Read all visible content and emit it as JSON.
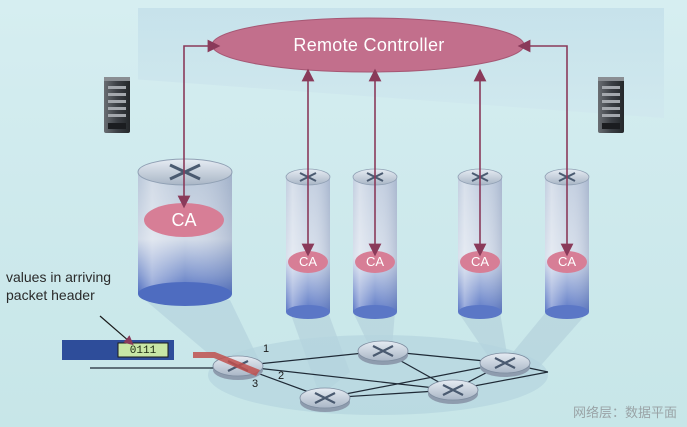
{
  "controller": {
    "label": "Remote Controller"
  },
  "agents": [
    {
      "label": "CA"
    },
    {
      "label": "CA"
    },
    {
      "label": "CA"
    },
    {
      "label": "CA"
    },
    {
      "label": "CA"
    }
  ],
  "annotation": {
    "line1": "values in arriving",
    "line2": "packet header"
  },
  "packet": {
    "header_value": "0111"
  },
  "ports": [
    "1",
    "2",
    "3"
  ],
  "footer": "网络层：数据平面",
  "colors": {
    "controller_fill": "#c26f8c",
    "ca_fill": "#d77e96",
    "arrow": "#8a3a5a",
    "cylinder_top": "#b8c8dc",
    "cylinder_bottom": "#5a78c6",
    "packet_bar": "#2e4d9a",
    "packet_field": "#c8e6a6",
    "incoming_arrow": "#c0504d"
  },
  "icons": [
    "server-rack-icon",
    "router-icon"
  ]
}
